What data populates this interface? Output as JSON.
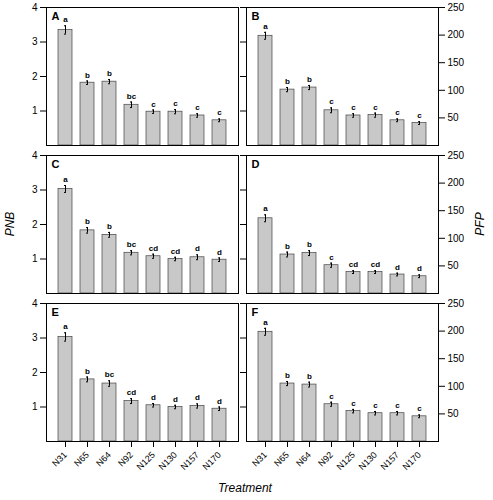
{
  "chart_data": {
    "type": "bar",
    "xlabel": "Treatment",
    "ylabel": "PNB",
    "y2label": "PFP",
    "categories": [
      "N31",
      "N65",
      "N64",
      "N92",
      "N125",
      "N130",
      "N157",
      "N170"
    ],
    "color": "#c8c8c8",
    "ylim": [
      0,
      4
    ],
    "yticks": [
      1,
      2,
      3,
      4
    ],
    "y2lim": [
      0,
      250
    ],
    "y2ticks": [
      50,
      100,
      150,
      200,
      250
    ],
    "panels": [
      {
        "title": "A",
        "values": [
          3.35,
          1.82,
          1.85,
          1.18,
          0.98,
          0.98,
          0.87,
          0.73
        ],
        "errors": [
          0.12,
          0.05,
          0.06,
          0.08,
          0.05,
          0.06,
          0.05,
          0.04
        ],
        "sig_labels": [
          "a",
          "b",
          "b",
          "bc",
          "c",
          "c",
          "c",
          "c"
        ]
      },
      {
        "title": "B",
        "values": [
          3.18,
          1.62,
          1.68,
          1.02,
          0.87,
          0.88,
          0.73,
          0.65
        ],
        "errors": [
          0.1,
          0.06,
          0.06,
          0.07,
          0.05,
          0.06,
          0.04,
          0.04
        ],
        "sig_labels": [
          "a",
          "b",
          "b",
          "c",
          "c",
          "c",
          "c",
          "c"
        ]
      },
      {
        "title": "C",
        "values": [
          3.03,
          1.83,
          1.7,
          1.18,
          1.08,
          1.0,
          1.05,
          0.98
        ],
        "errors": [
          0.1,
          0.08,
          0.07,
          0.06,
          0.06,
          0.05,
          0.07,
          0.05
        ],
        "sig_labels": [
          "a",
          "b",
          "b",
          "bc",
          "cd",
          "cd",
          "d",
          "d"
        ]
      },
      {
        "title": "D",
        "values": [
          2.18,
          1.13,
          1.17,
          0.82,
          0.62,
          0.62,
          0.55,
          0.5
        ],
        "errors": [
          0.1,
          0.07,
          0.07,
          0.06,
          0.04,
          0.04,
          0.04,
          0.04
        ],
        "sig_labels": [
          "a",
          "b",
          "b",
          "c",
          "cd",
          "cd",
          "d",
          "d"
        ]
      },
      {
        "title": "E",
        "values": [
          3.03,
          1.8,
          1.68,
          1.17,
          1.05,
          1.0,
          1.03,
          0.95
        ],
        "errors": [
          0.12,
          0.07,
          0.08,
          0.07,
          0.05,
          0.05,
          0.06,
          0.05
        ],
        "sig_labels": [
          "a",
          "b",
          "bc",
          "cd",
          "d",
          "d",
          "d",
          "d"
        ]
      },
      {
        "title": "F",
        "values": [
          3.18,
          1.68,
          1.65,
          1.08,
          0.88,
          0.82,
          0.82,
          0.73
        ],
        "errors": [
          0.1,
          0.06,
          0.07,
          0.06,
          0.05,
          0.05,
          0.05,
          0.04
        ],
        "sig_labels": [
          "a",
          "b",
          "b",
          "c",
          "c",
          "c",
          "c",
          "c"
        ]
      }
    ]
  }
}
